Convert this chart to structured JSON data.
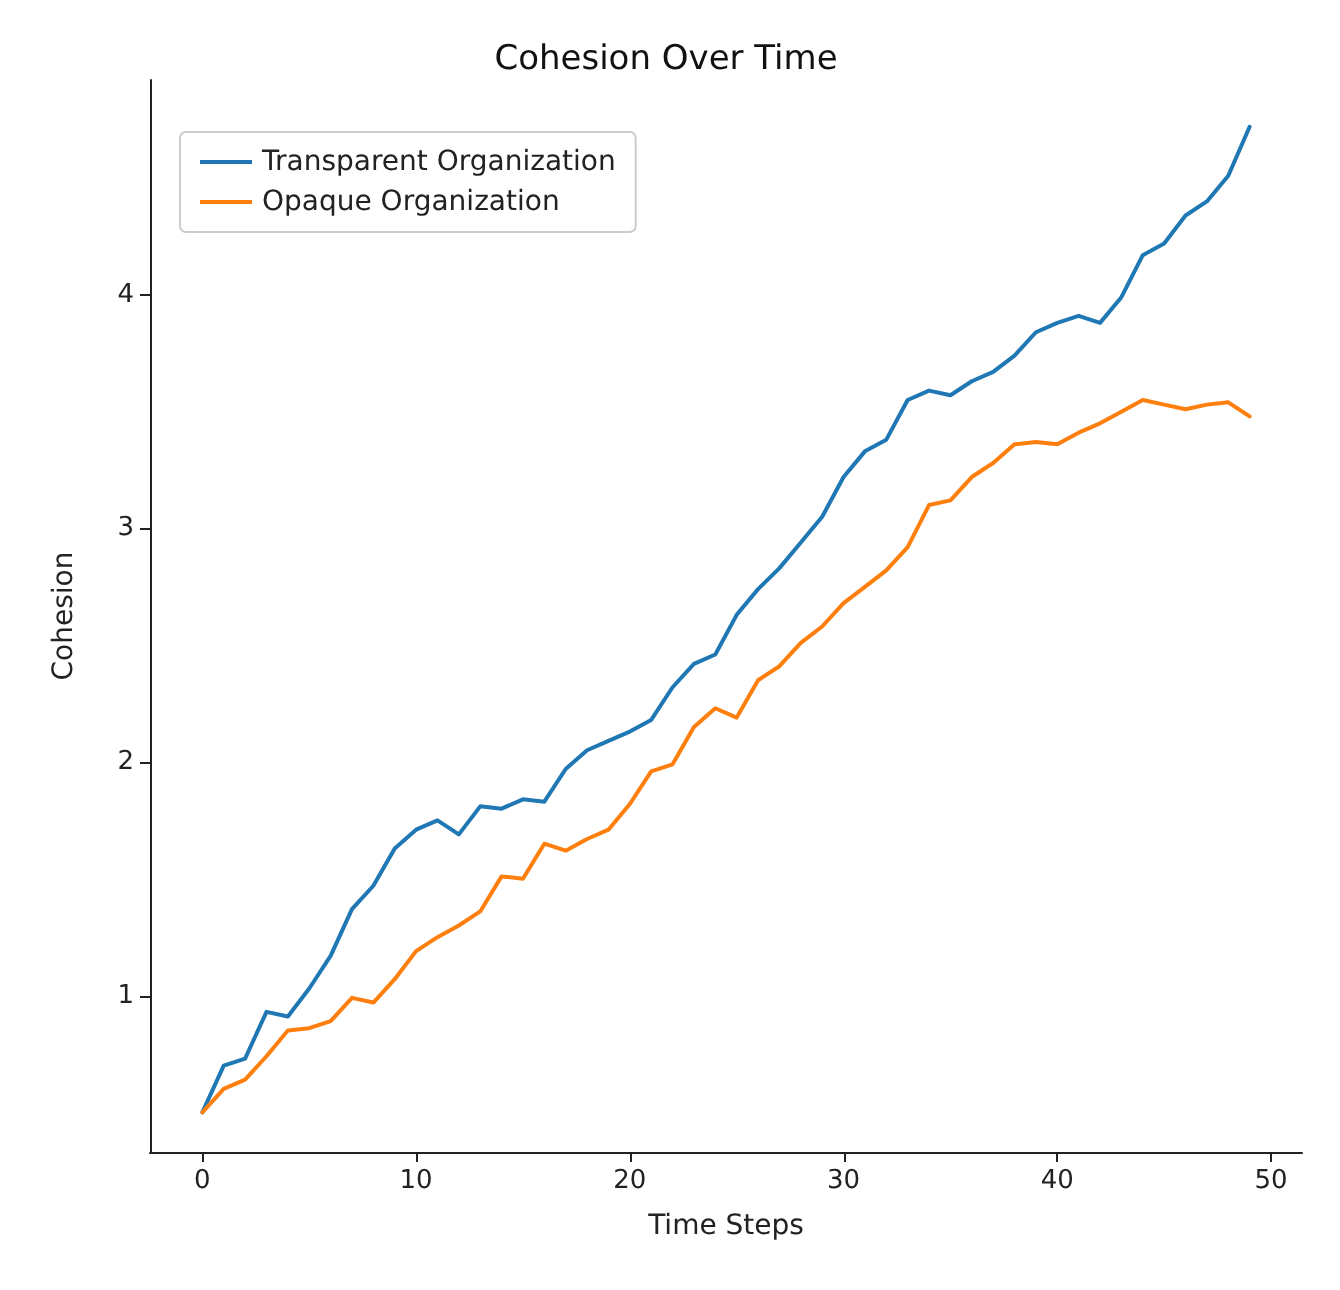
{
  "chart_data": {
    "type": "line",
    "title": "Cohesion Over Time",
    "xlabel": "Time Steps",
    "ylabel": "Cohesion",
    "x": [
      0,
      1,
      2,
      3,
      4,
      5,
      6,
      7,
      8,
      9,
      10,
      11,
      12,
      13,
      14,
      15,
      16,
      17,
      18,
      19,
      20,
      21,
      22,
      23,
      24,
      25,
      26,
      27,
      28,
      29,
      30,
      31,
      32,
      33,
      34,
      35,
      36,
      37,
      38,
      39,
      40,
      41,
      42,
      43,
      44,
      45,
      46,
      47,
      48,
      49
    ],
    "series": [
      {
        "name": "Transparent Organization",
        "color": "#1f77b4",
        "values": [
          0.5,
          0.7,
          0.73,
          0.93,
          0.91,
          1.03,
          1.17,
          1.37,
          1.47,
          1.63,
          1.71,
          1.75,
          1.69,
          1.81,
          1.8,
          1.84,
          1.83,
          1.97,
          2.05,
          2.09,
          2.13,
          2.18,
          2.32,
          2.42,
          2.46,
          2.63,
          2.74,
          2.83,
          2.94,
          3.05,
          3.22,
          3.33,
          3.38,
          3.55,
          3.59,
          3.57,
          3.63,
          3.67,
          3.74,
          3.84,
          3.88,
          3.91,
          3.88,
          3.99,
          4.17,
          4.22,
          4.34,
          4.4,
          4.51,
          4.72
        ]
      },
      {
        "name": "Opaque Organization",
        "color": "#ff7f0e",
        "values": [
          0.5,
          0.6,
          0.64,
          0.74,
          0.85,
          0.86,
          0.89,
          0.99,
          0.97,
          1.07,
          1.19,
          1.25,
          1.3,
          1.36,
          1.51,
          1.5,
          1.65,
          1.62,
          1.67,
          1.71,
          1.82,
          1.96,
          1.99,
          2.15,
          2.23,
          2.19,
          2.35,
          2.41,
          2.51,
          2.58,
          2.68,
          2.75,
          2.82,
          2.92,
          3.1,
          3.12,
          3.22,
          3.28,
          3.36,
          3.37,
          3.36,
          3.41,
          3.45,
          3.5,
          3.55,
          3.53,
          3.51,
          3.53,
          3.54,
          3.48
        ]
      }
    ],
    "xlim": [
      -2.45,
      51.45
    ],
    "xticks": [
      0,
      10,
      20,
      30,
      40,
      50
    ],
    "ylim": [
      0.33,
      4.92
    ],
    "yticks": [
      1,
      2,
      3,
      4
    ],
    "grid": false,
    "legend": "top left",
    "marker": "none",
    "line_style": "solid"
  }
}
